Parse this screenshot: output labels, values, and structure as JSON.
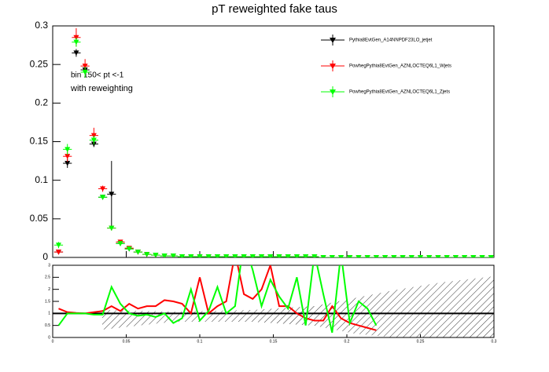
{
  "chart_data": {
    "type": "scatter",
    "title": "pT reweighted fake taus",
    "annotations": [
      "bin 150< pt <-1",
      "with reweighting"
    ],
    "legend": "top-right",
    "xlim": [
      0,
      0.3
    ],
    "xticks": [
      0,
      0.05,
      0.1,
      0.15,
      0.2,
      0.25,
      0.3
    ],
    "ylim": [
      0,
      0.3
    ],
    "yticks": [
      0,
      0.05,
      0.1,
      0.15,
      0.2,
      0.25,
      0.3
    ],
    "x": [
      0.004,
      0.01,
      0.016,
      0.022,
      0.028,
      0.034,
      0.04,
      0.046,
      0.052,
      0.058,
      0.064,
      0.07,
      0.076,
      0.082,
      0.088,
      0.094,
      0.1,
      0.106,
      0.112,
      0.118,
      0.124,
      0.13,
      0.136,
      0.142,
      0.148,
      0.154,
      0.16,
      0.166,
      0.172,
      0.178,
      0.184,
      0.19,
      0.196,
      0.202,
      0.208,
      0.214,
      0.22,
      0.226,
      0.232,
      0.238,
      0.244,
      0.25,
      0.256,
      0.262,
      0.268,
      0.274,
      0.28,
      0.286,
      0.292,
      0.298
    ],
    "series": [
      {
        "name": "Pythia8EvtGen_A14NNPDF23LO_jetjet",
        "color": "#000000",
        "values": [
          0.007,
          0.122,
          0.265,
          0.243,
          0.147,
          0.078,
          0.082,
          0.018,
          0.011,
          0.007,
          0.004,
          0.003,
          0.002,
          0.002,
          0.001,
          0.001,
          0.001,
          0.001,
          0.001,
          0.001,
          0.001,
          0.001,
          0.001,
          0.001,
          0.001,
          0.001,
          0.001,
          0.001,
          0.001,
          0.001,
          0,
          0,
          0,
          0,
          0,
          0,
          0,
          0,
          0,
          0,
          0,
          0,
          0,
          0,
          0,
          0,
          0,
          0,
          0,
          0
        ],
        "errors": [
          0.003,
          0.006,
          0.005,
          0.005,
          0.004,
          0.003,
          0.043,
          0.002,
          0.001,
          0.001,
          0,
          0,
          0,
          0,
          0,
          0,
          0,
          0,
          0,
          0,
          0,
          0,
          0,
          0,
          0,
          0,
          0,
          0,
          0,
          0,
          0,
          0,
          0,
          0,
          0,
          0,
          0,
          0,
          0,
          0,
          0,
          0,
          0,
          0,
          0,
          0,
          0,
          0,
          0,
          0
        ]
      },
      {
        "name": "PowhegPythia8EvtGen_AZNLOCTEQ6L1_Wjets",
        "color": "#ff0000",
        "values": [
          0.007,
          0.131,
          0.285,
          0.248,
          0.158,
          0.089,
          0.038,
          0.02,
          0.012,
          0.007,
          0.004,
          0.003,
          0.002,
          0.002,
          0.001,
          0.001,
          0.001,
          0.001,
          0.001,
          0.001,
          0.001,
          0.001,
          0.001,
          0.001,
          0.001,
          0.001,
          0.001,
          0.001,
          0.001,
          0.001,
          0,
          0,
          0,
          0,
          0,
          0,
          0,
          0,
          0,
          0,
          0,
          0,
          0,
          0,
          0,
          0,
          0,
          0,
          0,
          0
        ],
        "errors": [
          0.003,
          0.007,
          0.012,
          0.009,
          0.01,
          0.004,
          0.003,
          0.002,
          0.001,
          0.001,
          0,
          0,
          0,
          0,
          0,
          0,
          0,
          0,
          0,
          0,
          0,
          0,
          0,
          0,
          0,
          0,
          0,
          0,
          0,
          0,
          0,
          0,
          0,
          0,
          0,
          0,
          0,
          0,
          0,
          0,
          0,
          0,
          0,
          0,
          0,
          0,
          0,
          0,
          0,
          0
        ]
      },
      {
        "name": "PowhegPythia8EvtGen_AZNLOCTEQ6L1_Zjets",
        "color": "#00ff00",
        "values": [
          0.016,
          0.14,
          0.279,
          0.24,
          0.152,
          0.078,
          0.038,
          0.018,
          0.011,
          0.007,
          0.004,
          0.003,
          0.002,
          0.002,
          0.001,
          0.001,
          0.001,
          0.001,
          0.001,
          0.001,
          0.001,
          0.001,
          0.001,
          0.001,
          0.001,
          0.001,
          0.001,
          0.001,
          0.001,
          0.001,
          0,
          0,
          0,
          0,
          0,
          0,
          0,
          0,
          0,
          0,
          0,
          0,
          0,
          0,
          0,
          0,
          0,
          0,
          0,
          0
        ],
        "errors": [
          0.004,
          0.007,
          0.006,
          0.007,
          0.006,
          0.003,
          0.003,
          0.002,
          0.001,
          0.001,
          0,
          0,
          0,
          0,
          0,
          0,
          0,
          0,
          0,
          0,
          0,
          0,
          0,
          0,
          0,
          0,
          0,
          0,
          0,
          0,
          0,
          0,
          0,
          0,
          0,
          0,
          0,
          0,
          0,
          0,
          0,
          0,
          0,
          0,
          0,
          0,
          0,
          0,
          0,
          0
        ]
      }
    ],
    "ratio": {
      "type": "line",
      "ylim": [
        0,
        3
      ],
      "yticks": [
        0,
        0.5,
        1,
        1.5,
        2,
        2.5,
        3
      ],
      "reference": 1,
      "x": [
        0.004,
        0.01,
        0.016,
        0.022,
        0.028,
        0.034,
        0.04,
        0.046,
        0.052,
        0.058,
        0.064,
        0.07,
        0.076,
        0.082,
        0.088,
        0.094,
        0.1,
        0.106,
        0.112,
        0.118,
        0.124,
        0.13,
        0.136,
        0.142,
        0.148,
        0.154,
        0.16,
        0.166,
        0.172,
        0.178,
        0.184,
        0.19,
        0.196,
        0.202,
        0.208,
        0.214,
        0.22
      ],
      "series": [
        {
          "color": "#ff0000",
          "values": [
            1.2,
            1.05,
            1.02,
            1.0,
            1.05,
            1.1,
            1.3,
            1.1,
            1.4,
            1.2,
            1.3,
            1.3,
            1.55,
            1.5,
            1.4,
            1.0,
            2.5,
            1.0,
            1.3,
            1.5,
            3.5,
            1.8,
            1.6,
            2.0,
            3.0,
            1.3,
            1.3,
            1.0,
            0.8,
            0.7,
            0.7,
            1.3,
            0.8,
            0.6,
            0.5,
            0.4,
            0.3
          ]
        },
        {
          "color": "#00ff00",
          "values": [
            0.5,
            1.0,
            1.0,
            1.0,
            0.95,
            0.95,
            2.1,
            1.4,
            1.0,
            0.9,
            0.95,
            0.85,
            1.0,
            0.6,
            0.8,
            2.0,
            0.7,
            1.1,
            2.1,
            1.0,
            1.3,
            4.0,
            2.8,
            1.3,
            2.4,
            1.7,
            1.2,
            2.5,
            0.5,
            3.5,
            1.8,
            0.2,
            3.5,
            0.6,
            1.5,
            1.2,
            0.5
          ]
        }
      ]
    }
  }
}
